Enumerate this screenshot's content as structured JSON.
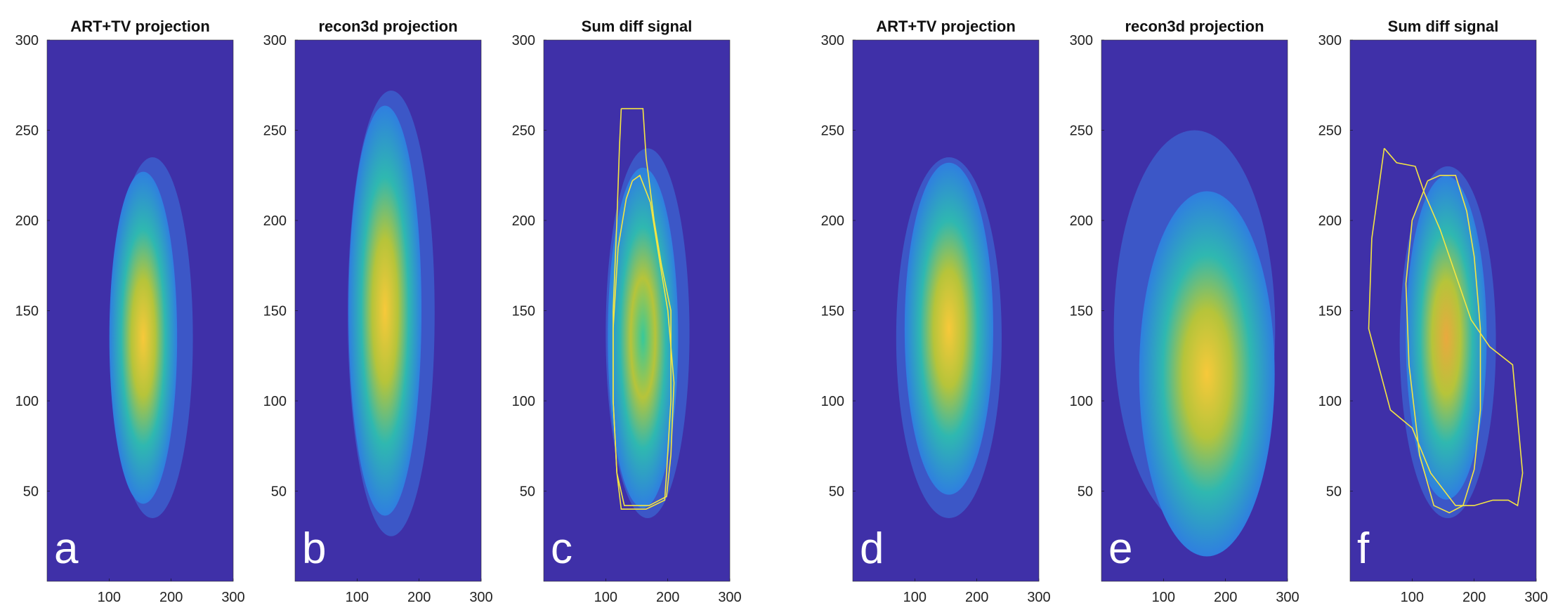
{
  "chart_data": [
    {
      "type": "heatmap",
      "title": "ART+TV projection",
      "panel_label": "a",
      "xlim": [
        0,
        300
      ],
      "ylim": [
        0,
        300
      ],
      "xticks": [
        100,
        200,
        300
      ],
      "yticks": [
        50,
        100,
        150,
        200,
        250,
        300
      ],
      "colormap": "parula",
      "background": "#3f30a8",
      "blob": {
        "y_range": [
          35,
          235
        ],
        "x_range": [
          105,
          235
        ],
        "peak_center": [
          155,
          135
        ],
        "peak_color": "#f7c93a"
      },
      "contours": []
    },
    {
      "type": "heatmap",
      "title": "recon3d projection",
      "panel_label": "b",
      "xlim": [
        0,
        300
      ],
      "ylim": [
        0,
        300
      ],
      "xticks": [
        100,
        200,
        300
      ],
      "yticks": [
        50,
        100,
        150,
        200,
        250,
        300
      ],
      "colormap": "parula",
      "background": "#3f30a8",
      "blob": {
        "y_range": [
          25,
          272
        ],
        "x_range": [
          85,
          225
        ],
        "peak_center": [
          145,
          150
        ],
        "peak_color": "#f7c93a"
      },
      "contours": []
    },
    {
      "type": "heatmap",
      "title": "Sum diff signal",
      "panel_label": "c",
      "xlim": [
        0,
        300
      ],
      "ylim": [
        0,
        300
      ],
      "xticks": [
        100,
        200,
        300
      ],
      "yticks": [
        50,
        100,
        150,
        200,
        250,
        300
      ],
      "colormap": "parula",
      "background": "#3f30a8",
      "blob": {
        "y_range": [
          35,
          240
        ],
        "x_range": [
          100,
          235
        ],
        "peak_center": [
          160,
          135
        ],
        "peak_color": "#37c99a"
      },
      "contours": [
        {
          "color": "#f5e642",
          "points": [
            [
              125,
              262
            ],
            [
              160,
              262
            ],
            [
              165,
              235
            ],
            [
              178,
              200
            ],
            [
              190,
              175
            ],
            [
              205,
              150
            ],
            [
              205,
              100
            ],
            [
              198,
              60
            ],
            [
              195,
              45
            ],
            [
              165,
              40
            ],
            [
              125,
              40
            ],
            [
              118,
              60
            ],
            [
              112,
              100
            ],
            [
              112,
              150
            ],
            [
              118,
              200
            ],
            [
              122,
              240
            ],
            [
              125,
              262
            ]
          ]
        },
        {
          "color": "#f5e642",
          "points": [
            [
              143,
              222
            ],
            [
              155,
              225
            ],
            [
              172,
              210
            ],
            [
              188,
              175
            ],
            [
              200,
              150
            ],
            [
              210,
              110
            ],
            [
              205,
              70
            ],
            [
              198,
              47
            ],
            [
              170,
              42
            ],
            [
              130,
              42
            ],
            [
              118,
              60
            ],
            [
              112,
              100
            ],
            [
              112,
              140
            ],
            [
              120,
              185
            ],
            [
              133,
              212
            ],
            [
              143,
              222
            ]
          ]
        }
      ]
    },
    {
      "type": "heatmap",
      "title": "ART+TV projection",
      "panel_label": "d",
      "xlim": [
        0,
        300
      ],
      "ylim": [
        0,
        300
      ],
      "xticks": [
        100,
        200,
        300
      ],
      "yticks": [
        50,
        100,
        150,
        200,
        250,
        300
      ],
      "colormap": "parula",
      "background": "#3f30a8",
      "blob": {
        "y_range": [
          35,
          235
        ],
        "x_range": [
          70,
          240
        ],
        "peak_center": [
          155,
          140
        ],
        "peak_color": "#f7c93a"
      },
      "contours": []
    },
    {
      "type": "heatmap",
      "title": "recon3d projection",
      "panel_label": "e",
      "xlim": [
        0,
        300
      ],
      "ylim": [
        0,
        300
      ],
      "xticks": [
        100,
        200,
        300
      ],
      "yticks": [
        50,
        100,
        150,
        200,
        250,
        300
      ],
      "colormap": "parula",
      "background": "#3f30a8",
      "blob": {
        "y_range": [
          30,
          250
        ],
        "x_range": [
          20,
          280
        ],
        "peak_center": [
          170,
          115
        ],
        "peak_color": "#f7c93a"
      },
      "contours": []
    },
    {
      "type": "heatmap",
      "title": "Sum diff signal",
      "panel_label": "f",
      "xlim": [
        0,
        300
      ],
      "ylim": [
        0,
        300
      ],
      "xticks": [
        100,
        200,
        300
      ],
      "yticks": [
        50,
        100,
        150,
        200,
        250,
        300
      ],
      "colormap": "parula",
      "background": "#3f30a8",
      "blob": {
        "y_range": [
          35,
          230
        ],
        "x_range": [
          80,
          235
        ],
        "peak_center": [
          155,
          135
        ],
        "peak_color": "#e9a93f"
      },
      "contours": [
        {
          "color": "#f5e642",
          "points": [
            [
              55,
              240
            ],
            [
              75,
              232
            ],
            [
              105,
              230
            ],
            [
              120,
              215
            ],
            [
              145,
              195
            ],
            [
              170,
              170
            ],
            [
              195,
              145
            ],
            [
              225,
              130
            ],
            [
              262,
              120
            ],
            [
              278,
              60
            ],
            [
              270,
              42
            ],
            [
              255,
              45
            ],
            [
              230,
              45
            ],
            [
              200,
              42
            ],
            [
              170,
              42
            ],
            [
              130,
              60
            ],
            [
              100,
              85
            ],
            [
              65,
              95
            ],
            [
              30,
              140
            ],
            [
              35,
              190
            ],
            [
              55,
              240
            ]
          ]
        },
        {
          "color": "#f5e642",
          "points": [
            [
              125,
              222
            ],
            [
              145,
              225
            ],
            [
              170,
              225
            ],
            [
              188,
              205
            ],
            [
              200,
              180
            ],
            [
              210,
              140
            ],
            [
              210,
              95
            ],
            [
              200,
              62
            ],
            [
              182,
              42
            ],
            [
              160,
              38
            ],
            [
              135,
              42
            ],
            [
              112,
              70
            ],
            [
              95,
              120
            ],
            [
              90,
              165
            ],
            [
              100,
              200
            ],
            [
              125,
              222
            ]
          ]
        }
      ]
    }
  ]
}
